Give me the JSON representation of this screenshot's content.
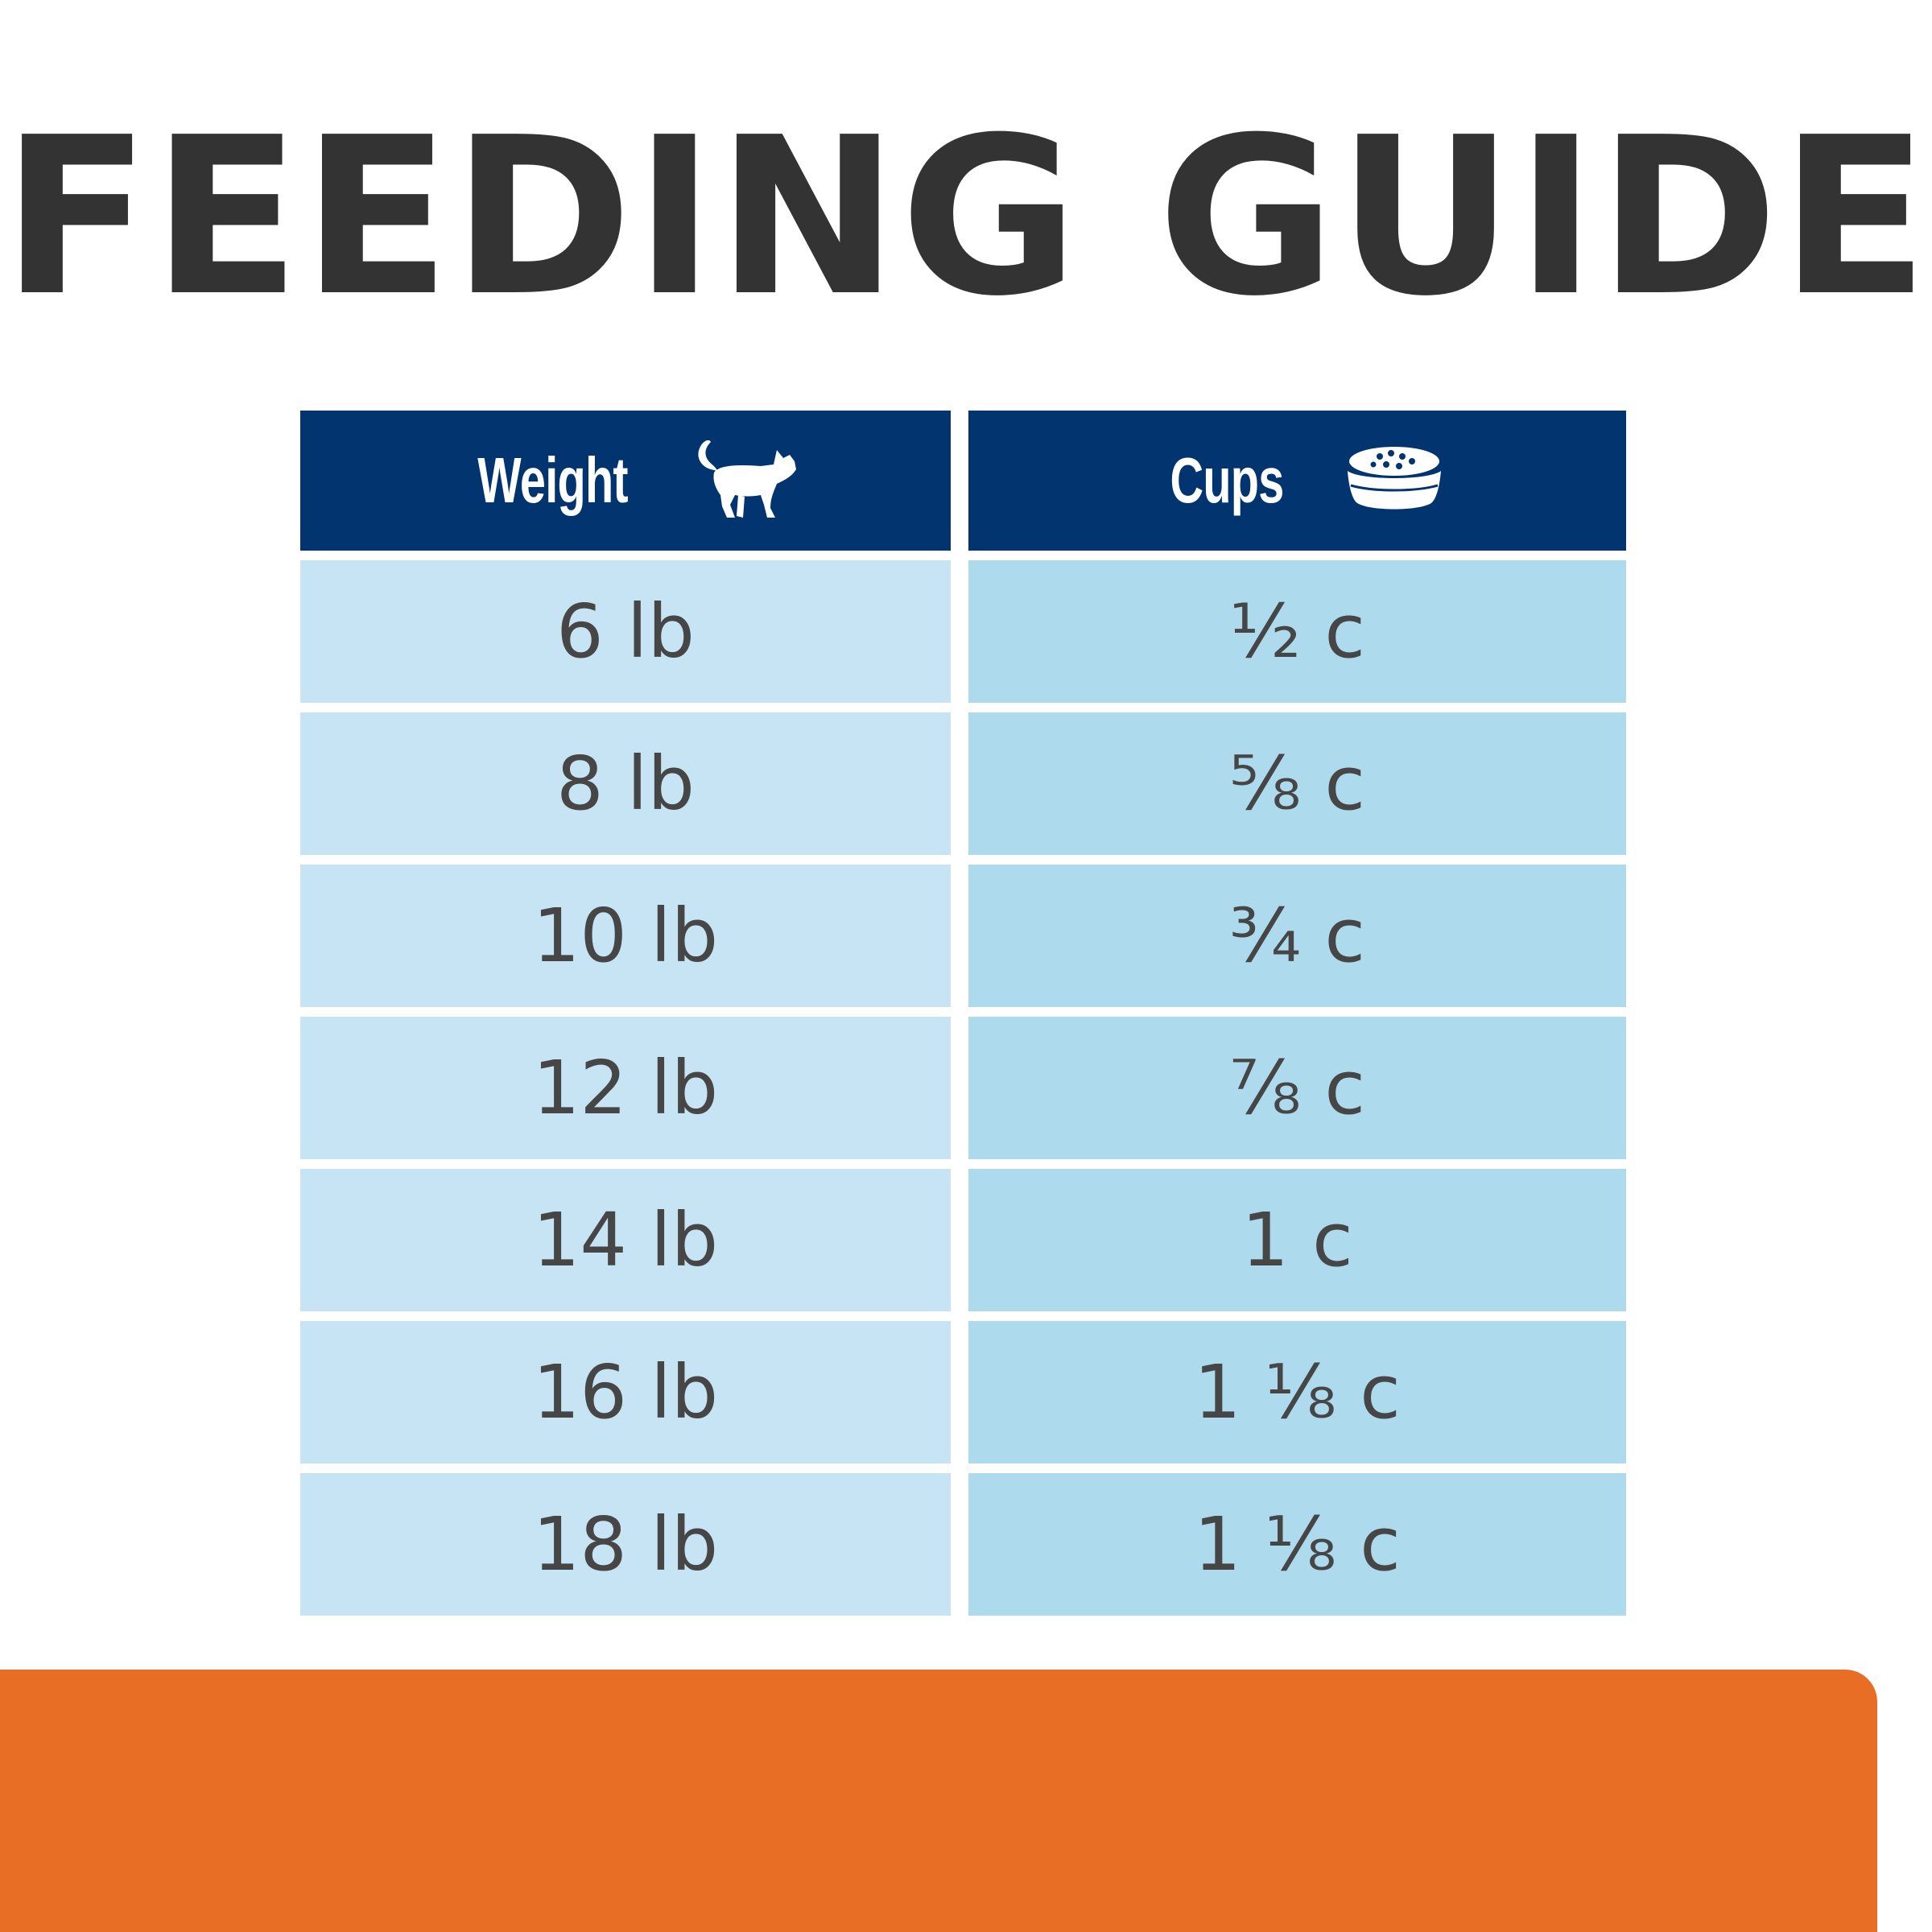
{
  "title": "FEEDING GUIDE",
  "table": {
    "headers": {
      "weight": "Weight",
      "weight_icon": "cat-icon",
      "cups": "Cups",
      "cups_icon": "food-bowl-icon"
    },
    "rows": [
      {
        "weight": "6 lb",
        "cups": "½ c"
      },
      {
        "weight": "8 lb",
        "cups": "⅝ c"
      },
      {
        "weight": "10 lb",
        "cups": "¾ c"
      },
      {
        "weight": "12 lb",
        "cups": "⅞ c"
      },
      {
        "weight": "14 lb",
        "cups": "1 c"
      },
      {
        "weight": "16 lb",
        "cups": "1 ⅛ c"
      },
      {
        "weight": "18 lb",
        "cups": "1 ⅛ c"
      }
    ]
  },
  "colors": {
    "header_bg": "#02346f",
    "weight_cell_bg": "#c6e4f4",
    "cups_cell_bg": "#aedaee",
    "text": "#464646",
    "title": "#333333",
    "band": "#e96e25"
  }
}
